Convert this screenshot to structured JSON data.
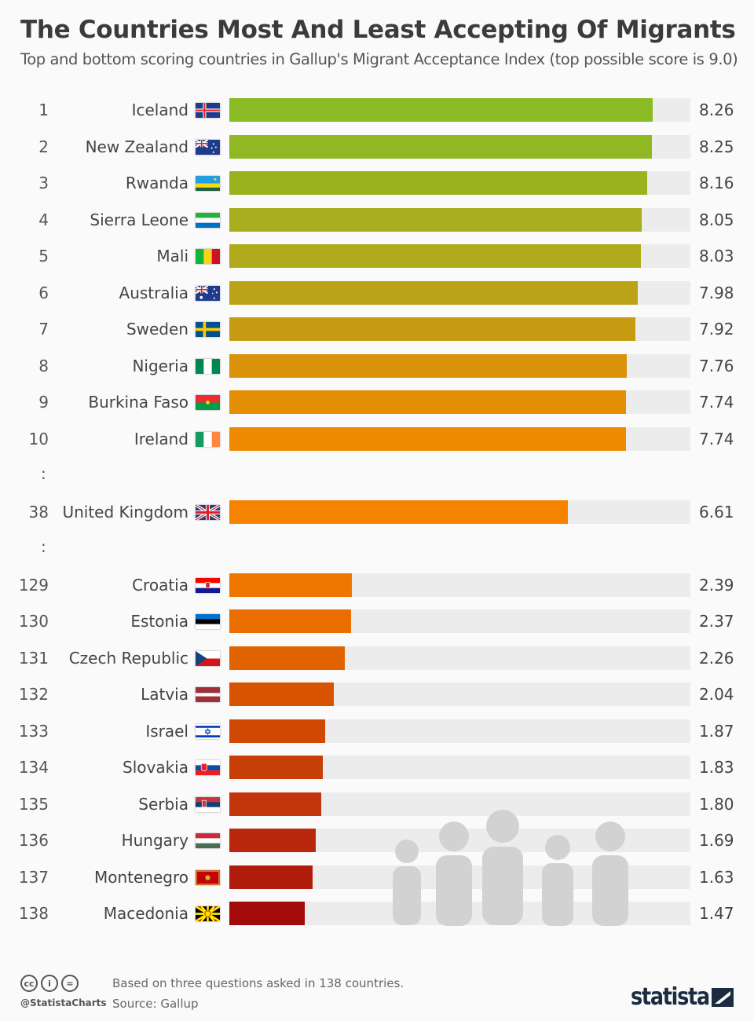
{
  "header": {
    "title": "The Countries Most And Least Accepting Of Migrants",
    "subtitle": "Top and bottom scoring countries in Gallup's Migrant Acceptance Index (top possible score is 9.0)"
  },
  "chart_data": {
    "type": "bar",
    "orientation": "horizontal",
    "xlim": [
      0,
      9
    ],
    "title": "The Countries Most And Least Accepting Of Migrants",
    "rows": [
      {
        "rank": "1",
        "country": "Iceland",
        "flag": "iceland-flag",
        "value": 8.26,
        "label": "8.26",
        "color": "#8aba24"
      },
      {
        "rank": "2",
        "country": "New Zealand",
        "flag": "new-zealand-flag",
        "value": 8.25,
        "label": "8.25",
        "color": "#8fb823"
      },
      {
        "rank": "3",
        "country": "Rwanda",
        "flag": "rwanda-flag",
        "value": 8.16,
        "label": "8.16",
        "color": "#9bb21f"
      },
      {
        "rank": "4",
        "country": "Sierra Leone",
        "flag": "sierra-leone-flag",
        "value": 8.05,
        "label": "8.05",
        "color": "#a8ad1d"
      },
      {
        "rank": "5",
        "country": "Mali",
        "flag": "mali-flag",
        "value": 8.03,
        "label": "8.03",
        "color": "#aeaa1c"
      },
      {
        "rank": "6",
        "country": "Australia",
        "flag": "australia-flag",
        "value": 7.98,
        "label": "7.98",
        "color": "#bba317"
      },
      {
        "rank": "7",
        "country": "Sweden",
        "flag": "sweden-flag",
        "value": 7.92,
        "label": "7.92",
        "color": "#c89c12"
      },
      {
        "rank": "8",
        "country": "Nigeria",
        "flag": "nigeria-flag",
        "value": 7.76,
        "label": "7.76",
        "color": "#da930a"
      },
      {
        "rank": "9",
        "country": "Burkina Faso",
        "flag": "burkina-faso-flag",
        "value": 7.74,
        "label": "7.74",
        "color": "#e38e05"
      },
      {
        "rank": "10",
        "country": "Ireland",
        "flag": "ireland-flag",
        "value": 7.74,
        "label": "7.74",
        "color": "#ee8902"
      },
      {
        "gap": ":"
      },
      {
        "rank": "38",
        "country": "United Kingdom",
        "flag": "united-kingdom-flag",
        "value": 6.61,
        "label": "6.61",
        "color": "#f58300"
      },
      {
        "gap": ":"
      },
      {
        "rank": "129",
        "country": "Croatia",
        "flag": "croatia-flag",
        "value": 2.39,
        "label": "2.39",
        "color": "#ef7700"
      },
      {
        "rank": "130",
        "country": "Estonia",
        "flag": "estonia-flag",
        "value": 2.37,
        "label": "2.37",
        "color": "#ea6e00"
      },
      {
        "rank": "131",
        "country": "Czech Republic",
        "flag": "czech-republic-flag",
        "value": 2.26,
        "label": "2.26",
        "color": "#e16300"
      },
      {
        "rank": "132",
        "country": "Latvia",
        "flag": "latvia-flag",
        "value": 2.04,
        "label": "2.04",
        "color": "#d85300"
      },
      {
        "rank": "133",
        "country": "Israel",
        "flag": "israel-flag",
        "value": 1.87,
        "label": "1.87",
        "color": "#cf4904"
      },
      {
        "rank": "134",
        "country": "Slovakia",
        "flag": "slovakia-flag",
        "value": 1.83,
        "label": "1.83",
        "color": "#c83e07"
      },
      {
        "rank": "135",
        "country": "Serbia",
        "flag": "serbia-flag",
        "value": 1.8,
        "label": "1.80",
        "color": "#c2350a"
      },
      {
        "rank": "136",
        "country": "Hungary",
        "flag": "hungary-flag",
        "value": 1.69,
        "label": "1.69",
        "color": "#b9280c"
      },
      {
        "rank": "137",
        "country": "Montenegro",
        "flag": "montenegro-flag",
        "value": 1.63,
        "label": "1.63",
        "color": "#b01c0c"
      },
      {
        "rank": "138",
        "country": "Macedonia",
        "flag": "macedonia-flag",
        "value": 1.47,
        "label": "1.47",
        "color": "#a30a0a"
      }
    ],
    "track_color": "#ececec"
  },
  "footer": {
    "note": "Based on three questions asked in 138 countries.",
    "source": "Source: Gallup",
    "handle": "@StatistaCharts",
    "cc_icons": [
      "cc",
      "i",
      "="
    ],
    "logo": "statista"
  }
}
